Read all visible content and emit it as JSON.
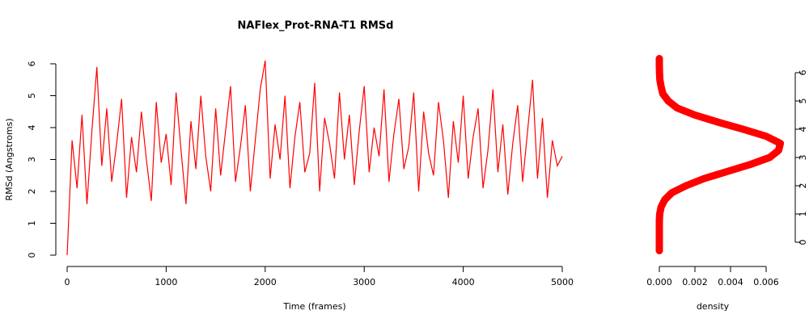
{
  "chart_data": [
    {
      "type": "line",
      "title": "NAFlex_Prot-RNA-T1 RMSd",
      "xlabel": "Time (frames)",
      "ylabel": "RMSd (Angstroms)",
      "color": "#ff0000",
      "x": [
        0,
        50,
        100,
        150,
        200,
        250,
        300,
        350,
        400,
        450,
        500,
        550,
        600,
        650,
        700,
        750,
        800,
        850,
        900,
        950,
        1000,
        1050,
        1100,
        1150,
        1200,
        1250,
        1300,
        1350,
        1400,
        1450,
        1500,
        1550,
        1600,
        1650,
        1700,
        1750,
        1800,
        1850,
        1900,
        1950,
        2000,
        2050,
        2100,
        2150,
        2200,
        2250,
        2300,
        2350,
        2400,
        2450,
        2500,
        2550,
        2600,
        2650,
        2700,
        2750,
        2800,
        2850,
        2900,
        2950,
        3000,
        3050,
        3100,
        3150,
        3200,
        3250,
        3300,
        3350,
        3400,
        3450,
        3500,
        3550,
        3600,
        3650,
        3700,
        3750,
        3800,
        3850,
        3900,
        3950,
        4000,
        4050,
        4100,
        4150,
        4200,
        4250,
        4300,
        4350,
        4400,
        4450,
        4500,
        4550,
        4600,
        4650,
        4700,
        4750,
        4800,
        4850,
        4900,
        4950,
        5000
      ],
      "values": [
        0,
        3.6,
        2.1,
        4.4,
        1.6,
        3.9,
        5.9,
        2.8,
        4.6,
        2.3,
        3.5,
        4.9,
        1.8,
        3.7,
        2.6,
        4.5,
        3.0,
        1.7,
        4.8,
        2.9,
        3.8,
        2.2,
        5.1,
        3.3,
        1.6,
        4.2,
        2.7,
        5.0,
        3.1,
        2.0,
        4.6,
        2.5,
        3.9,
        5.3,
        2.3,
        3.4,
        4.7,
        2.0,
        3.6,
        5.2,
        6.1,
        2.4,
        4.1,
        3.0,
        5.0,
        2.1,
        3.7,
        4.8,
        2.6,
        3.2,
        5.4,
        2.0,
        4.3,
        3.5,
        2.4,
        5.1,
        3.0,
        4.4,
        2.2,
        3.9,
        5.3,
        2.6,
        4.0,
        3.1,
        5.2,
        2.3,
        3.8,
        4.9,
        2.7,
        3.4,
        5.1,
        2.0,
        4.5,
        3.2,
        2.5,
        4.8,
        3.6,
        1.8,
        4.2,
        2.9,
        5.0,
        2.4,
        3.7,
        4.6,
        2.1,
        3.3,
        5.2,
        2.6,
        4.1,
        1.9,
        3.5,
        4.7,
        2.3,
        3.9,
        5.5,
        2.4,
        4.3,
        1.8,
        3.6,
        2.8,
        3.1
      ],
      "xlim": [
        0,
        5000
      ],
      "ylim": [
        0,
        6
      ],
      "xticks": [
        0,
        1000,
        2000,
        3000,
        4000,
        5000
      ],
      "yticks": [
        0,
        1,
        2,
        3,
        4,
        5,
        6
      ]
    },
    {
      "type": "density",
      "xlabel": "density",
      "color": "#ff0000",
      "x": [
        0,
        0,
        0,
        0,
        0,
        2e-05,
        0.0001,
        0.0003,
        0.0007,
        0.0015,
        0.0025,
        0.0038,
        0.0051,
        0.0062,
        0.0067,
        0.0068,
        0.006,
        0.0047,
        0.0033,
        0.002,
        0.001,
        0.0005,
        0.0002,
        0.0001,
        3e-05,
        1e-05,
        0,
        0
      ],
      "values": [
        -0.3,
        0,
        0.25,
        0.5,
        0.75,
        1,
        1.25,
        1.5,
        1.75,
        2,
        2.25,
        2.5,
        2.75,
        3,
        3.25,
        3.5,
        3.75,
        4,
        4.25,
        4.5,
        4.75,
        5,
        5.25,
        5.5,
        5.75,
        6,
        6.25,
        6.5
      ],
      "xlim": [
        0,
        0.006
      ],
      "ylim": [
        0,
        6
      ],
      "xticks": [
        {
          "value": 0,
          "label": "0.000"
        },
        {
          "value": 0.002,
          "label": "0.002"
        },
        {
          "value": 0.004,
          "label": "0.004"
        },
        {
          "value": 0.006,
          "label": "0.006"
        }
      ],
      "yticks": [
        0,
        1,
        2,
        3,
        4,
        5,
        6
      ]
    }
  ]
}
